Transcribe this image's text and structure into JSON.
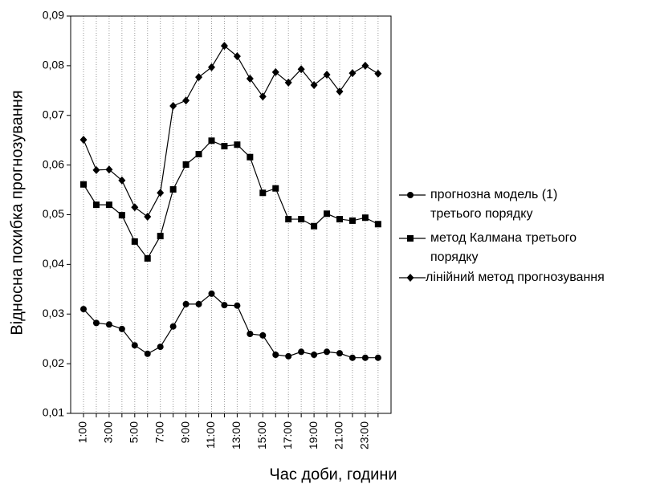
{
  "chart_data": {
    "type": "line",
    "x_label": "Час доби, години",
    "y_label": "Відносна похибка прогнозування",
    "categories": [
      "1:00",
      null,
      "3:00",
      null,
      "5:00",
      null,
      "7:00",
      null,
      "9:00",
      null,
      "11:00",
      null,
      "13:00",
      null,
      "15:00",
      null,
      "17:00",
      null,
      "19:00",
      null,
      "21:00",
      null,
      "23:00",
      null
    ],
    "ylim": [
      0.01,
      0.09
    ],
    "yticks": [
      {
        "value": 0.01,
        "label": "0,01"
      },
      {
        "value": 0.02,
        "label": "0,02"
      },
      {
        "value": 0.03,
        "label": "0,03"
      },
      {
        "value": 0.04,
        "label": "0,04"
      },
      {
        "value": 0.05,
        "label": "0,05"
      },
      {
        "value": 0.06,
        "label": "0,06"
      },
      {
        "value": 0.07,
        "label": "0,07"
      },
      {
        "value": 0.08,
        "label": "0,08"
      },
      {
        "value": 0.09,
        "label": "0,09"
      }
    ],
    "grid": "x",
    "legend": "right",
    "series": [
      {
        "name": "прогнозна модель (1)\nтретього порядку",
        "color": "#000000",
        "marker": "circle",
        "values": [
          0.031,
          0.0282,
          0.0279,
          0.027,
          0.0237,
          0.022,
          0.0234,
          0.0275,
          0.032,
          0.032,
          0.0341,
          0.0318,
          0.0317,
          0.026,
          0.0257,
          0.0218,
          0.0215,
          0.0224,
          0.0218,
          0.0224,
          0.0221,
          0.0212,
          0.0212,
          0.0212
        ]
      },
      {
        "name": "метод Калмана третього\n порядку",
        "color": "#000000",
        "marker": "square",
        "values": [
          0.0561,
          0.052,
          0.052,
          0.0499,
          0.0446,
          0.0412,
          0.0457,
          0.0551,
          0.0601,
          0.0622,
          0.0649,
          0.0638,
          0.0641,
          0.0616,
          0.0544,
          0.0553,
          0.0491,
          0.0491,
          0.0477,
          0.0502,
          0.0491,
          0.0488,
          0.0494,
          0.0481
        ]
      },
      {
        "name": "лінійний метод прогнозування",
        "color": "#000000",
        "marker": "diamond",
        "values": [
          0.0651,
          0.059,
          0.0591,
          0.0569,
          0.0515,
          0.0496,
          0.0544,
          0.0719,
          0.073,
          0.0777,
          0.0797,
          0.084,
          0.0819,
          0.0774,
          0.0738,
          0.0787,
          0.0766,
          0.0793,
          0.0761,
          0.0782,
          0.0748,
          0.0785,
          0.08,
          0.0784
        ]
      }
    ]
  }
}
